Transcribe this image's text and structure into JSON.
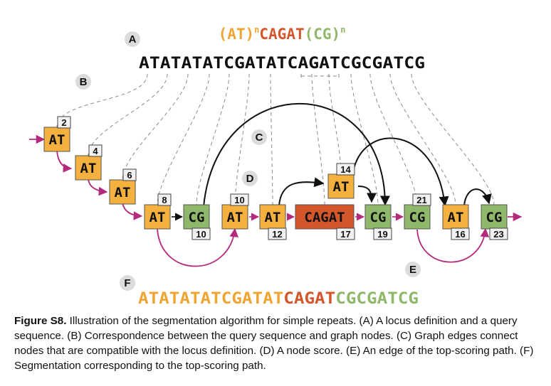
{
  "labels": {
    "a": "A",
    "b": "B",
    "c": "C",
    "d": "D",
    "e": "E",
    "f": "F"
  },
  "locus": {
    "at": "(AT)",
    "n1": "n",
    "core": "CAGAT",
    "cg": "(CG)",
    "n2": "n"
  },
  "query": "ATATATATCGATATCAGATCGCGATCG",
  "segmentation": {
    "at": "ATATATATCGATAT",
    "cagat": "CAGAT",
    "cg": "CGCGATCG"
  },
  "nodes": [
    {
      "id": "n1",
      "label": "AT",
      "type": "AT",
      "score": "2"
    },
    {
      "id": "n2",
      "label": "AT",
      "type": "AT",
      "score": "4"
    },
    {
      "id": "n3",
      "label": "AT",
      "type": "AT",
      "score": "6"
    },
    {
      "id": "n4",
      "label": "AT",
      "type": "AT",
      "score": "8"
    },
    {
      "id": "n5",
      "label": "CG",
      "type": "CG",
      "score": "10"
    },
    {
      "id": "n6",
      "label": "AT",
      "type": "AT",
      "score": "10"
    },
    {
      "id": "n7",
      "label": "AT",
      "type": "AT",
      "score": "12"
    },
    {
      "id": "n8",
      "label": "CAGAT",
      "type": "CAGAT",
      "score": "17"
    },
    {
      "id": "n9",
      "label": "AT",
      "type": "AT",
      "score": "14"
    },
    {
      "id": "n10",
      "label": "CG",
      "type": "CG",
      "score": "19"
    },
    {
      "id": "n11",
      "label": "CG",
      "type": "CG",
      "score": "21"
    },
    {
      "id": "n12",
      "label": "AT",
      "type": "AT",
      "score": "16"
    },
    {
      "id": "n13",
      "label": "CG",
      "type": "CG",
      "score": "23"
    }
  ],
  "caption": {
    "title": "Figure S8.",
    "text": " Illustration of the segmentation algorithm for simple repeats. (A) A locus definition and a query sequence. (B) Correspondence between the query sequence and graph nodes. (C) Graph edges connect nodes that are compatible with the locus definition. (D) A node score. (E) An edge of the top-scoring path. (F) Segmentation corresponding to the top-scoring path."
  },
  "colors": {
    "at": "#f5b13d",
    "cg": "#8fb86a",
    "cagat": "#d4562b",
    "path": "#b42a7d",
    "edge": "#111111",
    "guide": "#8a8a8a"
  }
}
